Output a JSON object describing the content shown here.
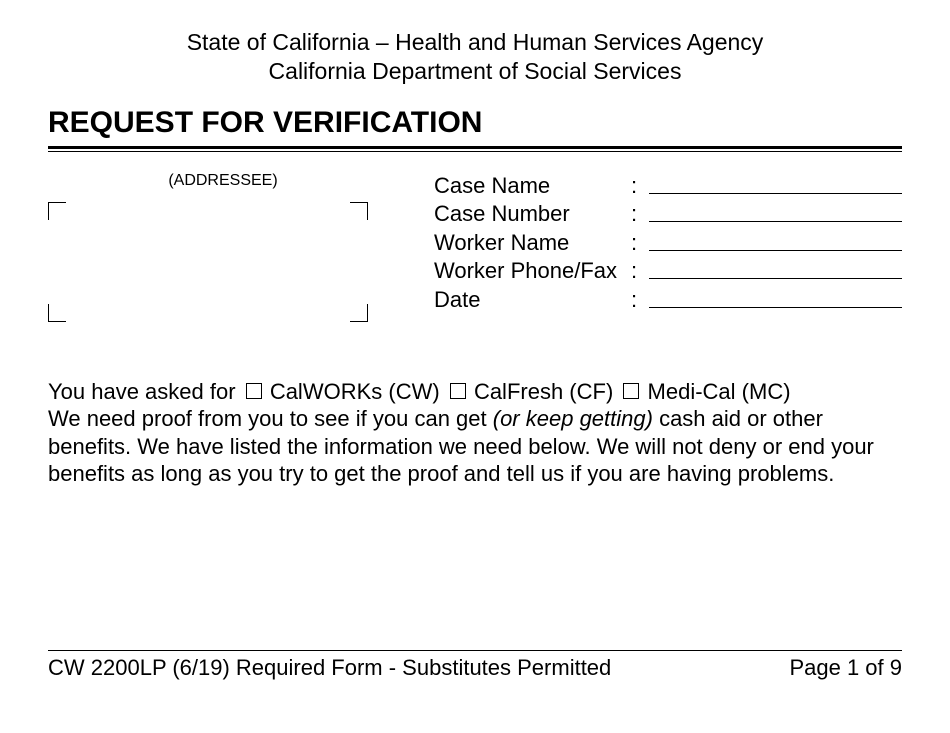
{
  "header": {
    "agency": "State of California – Health and Human Services Agency",
    "department": "California Department of Social Services"
  },
  "title": "REQUEST FOR VERIFICATION",
  "addressee_label": "(ADDRESSEE)",
  "case_fields": [
    {
      "label": "Case Name"
    },
    {
      "label": "Case Number"
    },
    {
      "label": "Worker Name"
    },
    {
      "label": "Worker Phone/Fax"
    },
    {
      "label": "Date"
    }
  ],
  "body": {
    "intro": "You have asked for",
    "options": [
      {
        "label": "CalWORKs (CW)"
      },
      {
        "label": "CalFresh (CF)"
      },
      {
        "label": "Medi-Cal (MC)"
      }
    ],
    "line2_a": "We need proof from you to see if you can get ",
    "line2_italic": "(or keep getting)",
    "line2_b": " cash aid or other benefits.  We have listed the information we need below.  We will not deny or end your benefits as long as you try to get the proof and tell us if you are having problems."
  },
  "footer": {
    "form_id": "CW 2200LP (6/19) Required Form - Substitutes Permitted",
    "page": "Page 1 of 9"
  },
  "colors": {
    "text": "#000000",
    "background": "#ffffff"
  }
}
